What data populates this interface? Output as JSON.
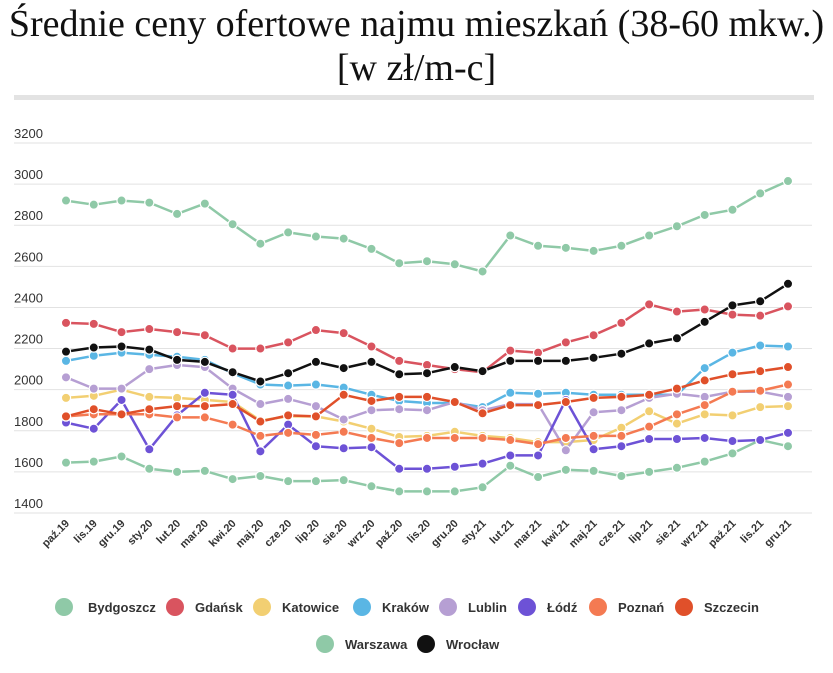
{
  "chart_data": {
    "type": "line",
    "title": "Średnie ceny ofertowe najmu mieszkań (38-60 mkw.) [w zł/m-c]",
    "xlabel": "",
    "ylabel": "",
    "ylim": [
      1400,
      3200
    ],
    "yticks": [
      1400,
      1600,
      1800,
      2000,
      2200,
      2400,
      2600,
      2800,
      3000,
      3200
    ],
    "grid": true,
    "legend_position": "bottom",
    "x": [
      "paź.19",
      "lis.19",
      "gru.19",
      "sty.20",
      "lut.20",
      "mar.20",
      "kwi.20",
      "maj.20",
      "cze.20",
      "lip.20",
      "sie.20",
      "wrz.20",
      "paź.20",
      "lis.20",
      "gru.20",
      "sty.21",
      "lut.21",
      "mar.21",
      "kwi.21",
      "maj.21",
      "cze.21",
      "lip.21",
      "sie.21",
      "wrz.21",
      "paź.21",
      "lis.21",
      "gru.21"
    ],
    "series": [
      {
        "name": "Bydgoszcz",
        "color": "#8fc9a7",
        "values": [
          1645,
          1650,
          1675,
          1615,
          1600,
          1605,
          1565,
          1580,
          1555,
          1555,
          1560,
          1530,
          1505,
          1505,
          1505,
          1525,
          1630,
          1575,
          1610,
          1605,
          1580,
          1600,
          1620,
          1650,
          1690,
          1755,
          1725
        ]
      },
      {
        "name": "Gdańsk",
        "color": "#d9545f",
        "values": [
          2325,
          2320,
          2280,
          2295,
          2280,
          2265,
          2200,
          2200,
          2230,
          2290,
          2275,
          2210,
          2140,
          2120,
          2100,
          2085,
          2190,
          2180,
          2230,
          2265,
          2325,
          2415,
          2380,
          2390,
          2365,
          2360,
          2405
        ]
      },
      {
        "name": "Katowice",
        "color": "#f2cf72",
        "values": [
          1960,
          1970,
          2000,
          1965,
          1960,
          1950,
          1940,
          1850,
          1870,
          1870,
          1845,
          1810,
          1770,
          1775,
          1795,
          1775,
          1765,
          1745,
          1745,
          1755,
          1815,
          1895,
          1835,
          1880,
          1875,
          1915,
          1920
        ]
      },
      {
        "name": "Kraków",
        "color": "#5ab6e4",
        "values": [
          2140,
          2165,
          2180,
          2170,
          2160,
          2145,
          2080,
          2025,
          2020,
          2025,
          2010,
          1975,
          1945,
          1935,
          1935,
          1915,
          1985,
          1980,
          1985,
          1975,
          1975,
          1975,
          1975,
          2105,
          2180,
          2215,
          2210
        ]
      },
      {
        "name": "Lublin",
        "color": "#b69fd3",
        "values": [
          2060,
          2005,
          2005,
          2100,
          2120,
          2110,
          2005,
          1930,
          1955,
          1920,
          1855,
          1900,
          1905,
          1900,
          1940,
          1900,
          1930,
          1930,
          1705,
          1890,
          1900,
          1960,
          1980,
          1965,
          1990,
          1990,
          1965
        ]
      },
      {
        "name": "Łódź",
        "color": "#6d52d6",
        "values": [
          1840,
          1810,
          1950,
          1710,
          1875,
          1985,
          1975,
          1700,
          1830,
          1725,
          1715,
          1720,
          1615,
          1615,
          1625,
          1640,
          1680,
          1680,
          1950,
          1710,
          1725,
          1760,
          1760,
          1765,
          1750,
          1755,
          1790
        ]
      },
      {
        "name": "Poznań",
        "color": "#f47a52",
        "values": [
          1870,
          1880,
          1880,
          1880,
          1865,
          1865,
          1830,
          1775,
          1790,
          1780,
          1795,
          1765,
          1740,
          1765,
          1765,
          1765,
          1755,
          1735,
          1765,
          1775,
          1775,
          1820,
          1880,
          1925,
          1990,
          1995,
          2025
        ]
      },
      {
        "name": "Szczecin",
        "color": "#e0502a",
        "values": [
          1870,
          1905,
          1880,
          1905,
          1920,
          1920,
          1930,
          1845,
          1875,
          1870,
          1975,
          1945,
          1965,
          1965,
          1940,
          1885,
          1925,
          1925,
          1940,
          1960,
          1965,
          1975,
          2005,
          2045,
          2075,
          2090,
          2110
        ]
      },
      {
        "name": "Warszawa",
        "color": "#8fc9a7",
        "values": [
          2920,
          2900,
          2920,
          2910,
          2855,
          2905,
          2805,
          2710,
          2765,
          2745,
          2735,
          2685,
          2615,
          2625,
          2610,
          2575,
          2750,
          2700,
          2690,
          2675,
          2700,
          2750,
          2795,
          2850,
          2875,
          2955,
          3015
        ]
      },
      {
        "name": "Wrocław",
        "color": "#111111",
        "values": [
          2185,
          2205,
          2210,
          2195,
          2145,
          2135,
          2085,
          2040,
          2080,
          2135,
          2105,
          2135,
          2075,
          2080,
          2110,
          2090,
          2140,
          2140,
          2140,
          2155,
          2175,
          2225,
          2250,
          2330,
          2410,
          2430,
          2515
        ]
      }
    ]
  }
}
